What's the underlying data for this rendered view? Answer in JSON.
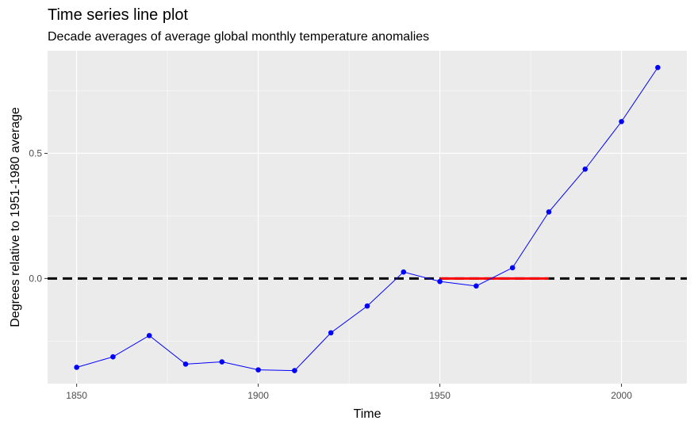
{
  "chart_data": {
    "type": "line",
    "title": "Time series line plot",
    "subtitle": "Decade averages of average global monthly temperature anomalies",
    "xlabel": "Time",
    "ylabel": "Degrees relative to 1951-1980 average",
    "xlim": [
      1842,
      2018
    ],
    "ylim": [
      -0.42,
      0.91
    ],
    "x_ticks": [
      1850,
      1900,
      1950,
      2000
    ],
    "y_ticks": [
      0.0,
      0.5
    ],
    "y_tick_labels": [
      "0.0",
      "0.5"
    ],
    "grid": true,
    "series": [
      {
        "color": "#0000ff",
        "x": [
          1850,
          1860,
          1870,
          1880,
          1890,
          1900,
          1910,
          1920,
          1930,
          1940,
          1950,
          1960,
          1970,
          1980,
          1990,
          2000,
          2010
        ],
        "y": [
          -0.355,
          -0.313,
          -0.228,
          -0.342,
          -0.333,
          -0.365,
          -0.368,
          -0.217,
          -0.11,
          0.026,
          -0.012,
          -0.03,
          0.043,
          0.266,
          0.437,
          0.627,
          0.843
        ]
      }
    ],
    "reference_lines": [
      {
        "kind": "horizontal",
        "y": 0.0,
        "style": "dashed",
        "color": "#000000"
      },
      {
        "kind": "segment",
        "x": [
          1950,
          1980
        ],
        "y": 0.0,
        "style": "solid",
        "color": "#ff0000"
      }
    ]
  }
}
